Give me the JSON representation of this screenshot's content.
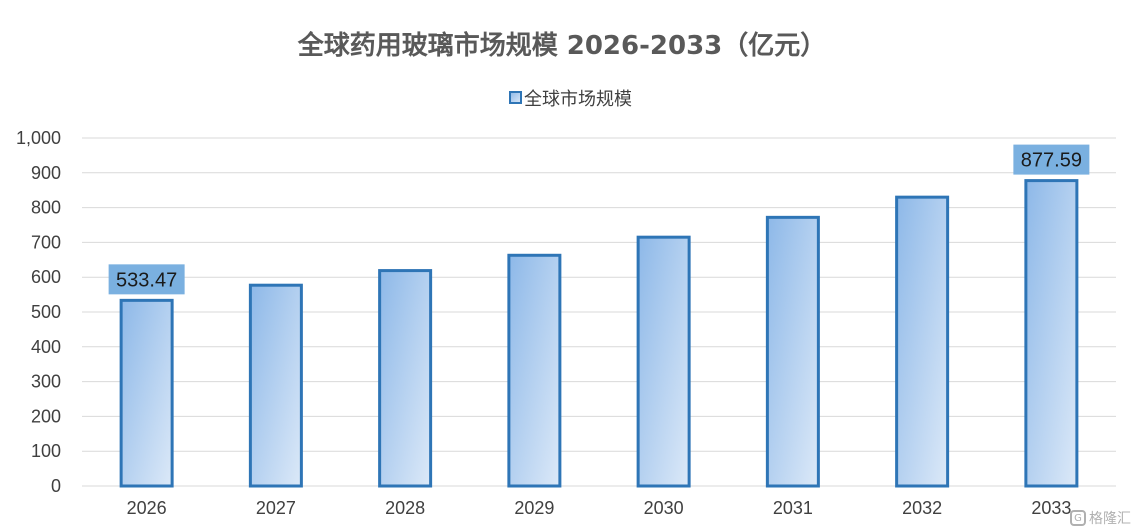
{
  "chart_data": {
    "type": "bar",
    "title": "全球药用玻璃市场规模 2026-2033（亿元）",
    "categories": [
      "2026",
      "2027",
      "2028",
      "2029",
      "2030",
      "2031",
      "2032",
      "2033"
    ],
    "series": [
      {
        "name": "全球市场规模",
        "values": [
          533.47,
          577,
          619,
          663,
          715,
          772,
          830,
          877.59
        ]
      }
    ],
    "data_labels": [
      {
        "index": 0,
        "text": "533.47"
      },
      {
        "index": 7,
        "text": "877.59"
      }
    ],
    "yticks": [
      "0",
      "100",
      "200",
      "300",
      "400",
      "500",
      "600",
      "700",
      "800",
      "900",
      "1,000"
    ],
    "ylim": [
      0,
      1000
    ],
    "xlabel": "",
    "ylabel": "",
    "grid": true,
    "legend_position": "top-center",
    "colors": {
      "bar_stroke": "#2e75b6",
      "bar_fill_top": "#8db8e8",
      "bar_fill_bottom": "#dce9f8",
      "label_box": "#7ab0e0"
    }
  },
  "watermark": {
    "text": "格隆汇",
    "icon": "gelonghui-logo-icon"
  }
}
